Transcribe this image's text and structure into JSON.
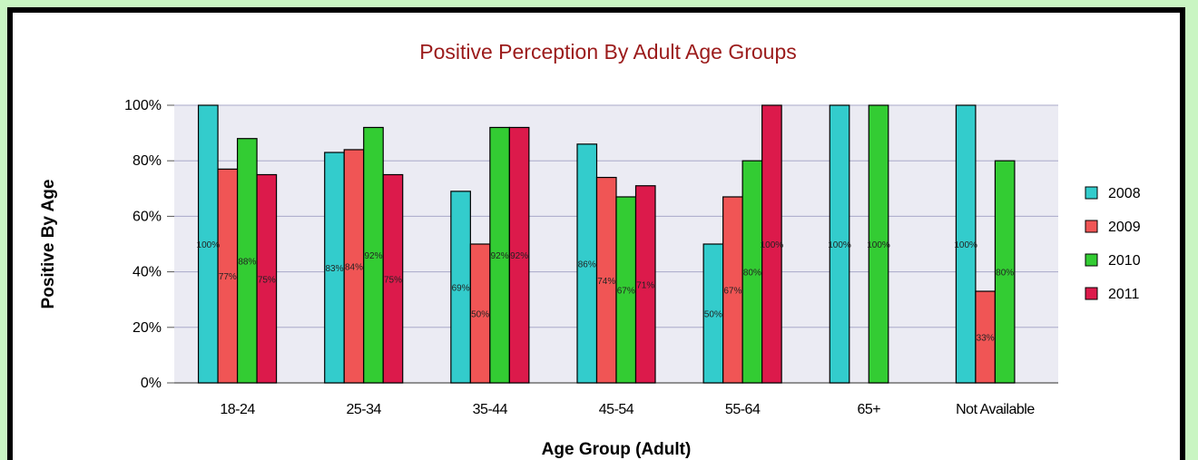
{
  "chart_data": {
    "type": "bar",
    "title": "Positive Perception By Adult Age Groups",
    "xlabel": "Age Group (Adult)",
    "ylabel": "Positive By Age",
    "ylim": [
      0,
      100
    ],
    "yticks": [
      "0%",
      "20%",
      "40%",
      "60%",
      "80%",
      "100%"
    ],
    "categories": [
      "18-24",
      "25-34",
      "35-44",
      "45-54",
      "55-64",
      "65+",
      "Not Available"
    ],
    "series": [
      {
        "name": "2008",
        "color": "#33cccc",
        "values": [
          100,
          83,
          69,
          86,
          50,
          100,
          100
        ],
        "labels": [
          "100%",
          "83%",
          "69%",
          "86%",
          "50%",
          "100%",
          "100%"
        ]
      },
      {
        "name": "2009",
        "color": "#f05555",
        "values": [
          77,
          84,
          50,
          74,
          67,
          null,
          33
        ],
        "labels": [
          "77%",
          "84%",
          "50%",
          "74%",
          "67%",
          "",
          "33%"
        ]
      },
      {
        "name": "2010",
        "color": "#33cc33",
        "values": [
          88,
          92,
          92,
          67,
          80,
          100,
          80
        ],
        "labels": [
          "88%",
          "92%",
          "92%",
          "67%",
          "80%",
          "100%",
          "80%"
        ]
      },
      {
        "name": "2011",
        "color": "#dc1a4b",
        "values": [
          75,
          75,
          92,
          71,
          100,
          null,
          null
        ],
        "labels": [
          "75%",
          "75%",
          "92%",
          "71%",
          "100%",
          "",
          ""
        ]
      }
    ],
    "grid": true,
    "legend": "right"
  }
}
